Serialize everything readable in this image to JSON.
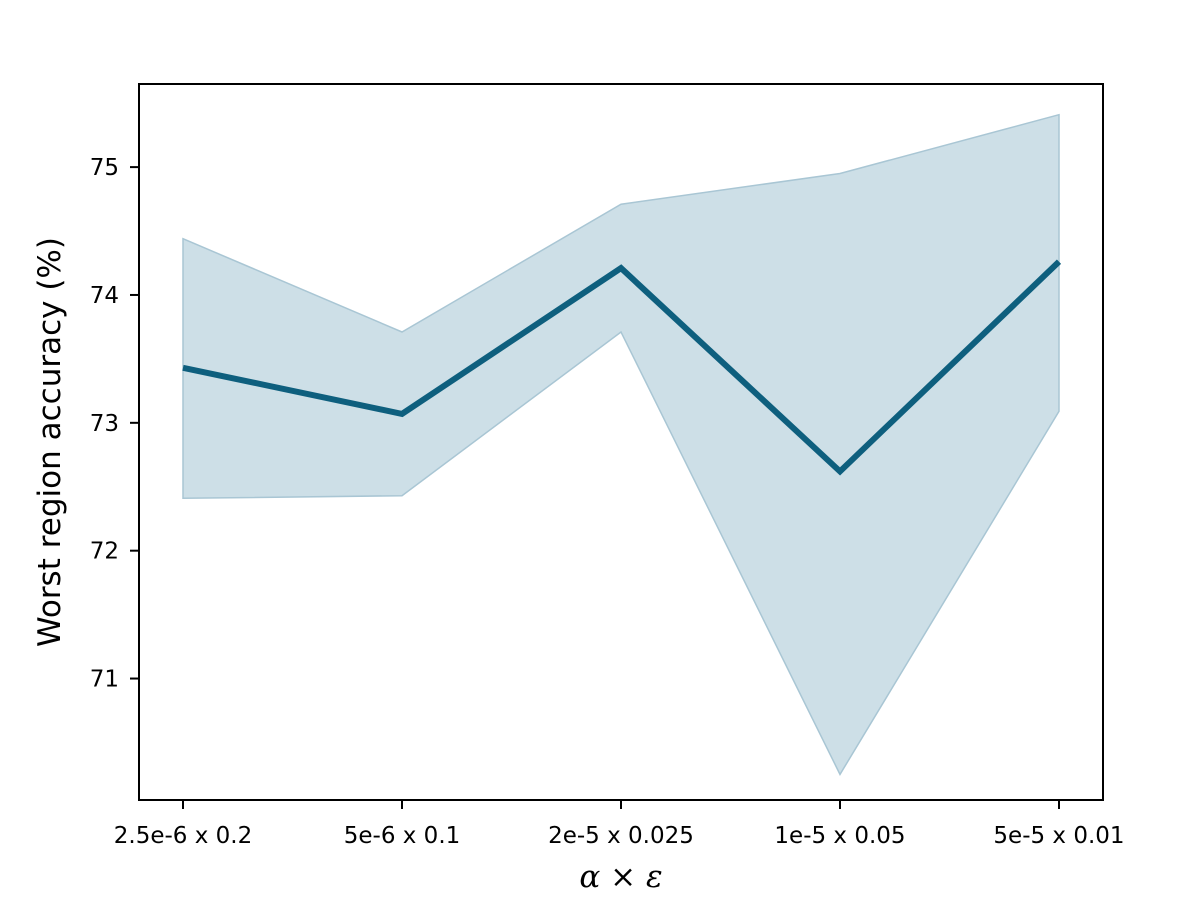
{
  "chart_data": {
    "type": "line",
    "title": "",
    "xlabel": "α × ε",
    "ylabel": "Worst region accuracy (%)",
    "categories": [
      "2.5e-6 x 0.2",
      "5e-6 x 0.1",
      "2e-5 x 0.025",
      "1e-5 x 0.05",
      "5e-5 x 0.01"
    ],
    "series": [
      {
        "values": [
          73.43,
          73.07,
          74.21,
          72.62,
          74.26
        ],
        "lower": [
          72.41,
          72.43,
          73.71,
          70.25,
          73.09
        ],
        "upper": [
          74.44,
          73.71,
          74.71,
          74.95,
          75.41
        ]
      }
    ],
    "yticks": [
      71,
      72,
      73,
      74,
      75
    ],
    "ylim": [
      70.05,
      75.65
    ],
    "grid": false,
    "legend": false,
    "colors": {
      "line": "#0e5f7e",
      "band_fill": "#cddfe7",
      "band_edge": "#a9c6d4",
      "axis": "#000000"
    }
  }
}
